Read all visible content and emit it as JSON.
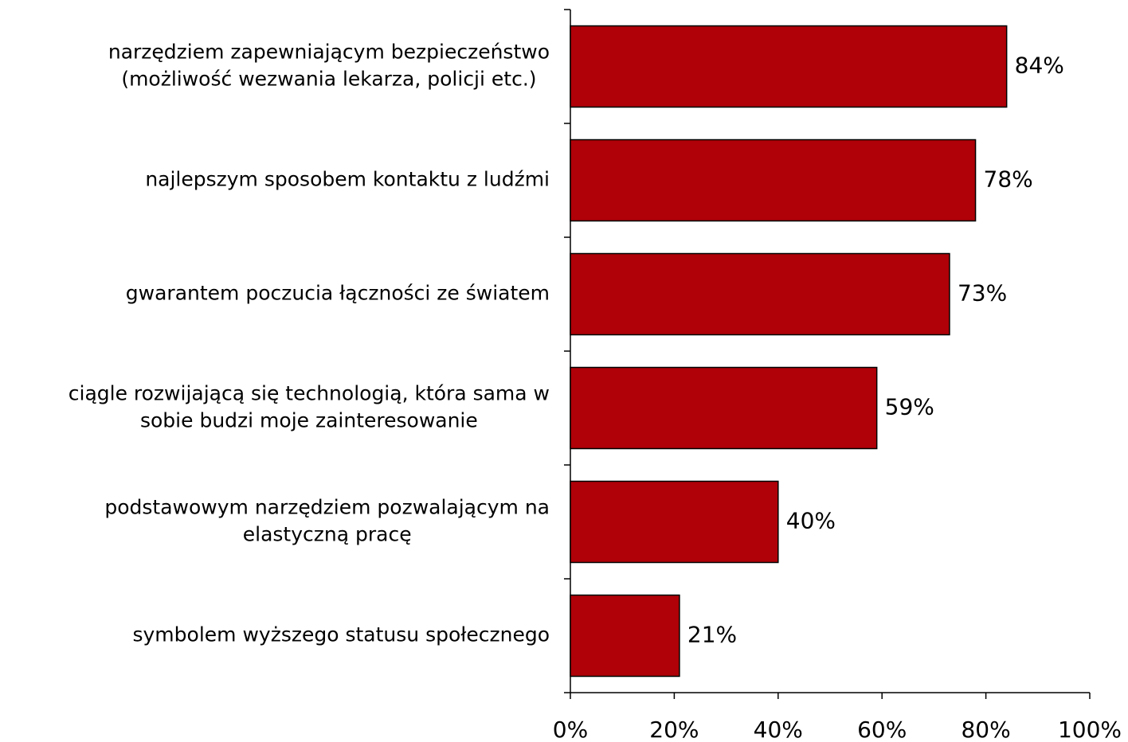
{
  "chart_data": {
    "type": "hbar",
    "categories": [
      "narzędziem zapewniającym bezpieczeństwo\n(możliwość wezwania lekarza, policji etc.)",
      "najlepszym sposobem kontaktu z ludźmi",
      "gwarantem poczucia łączności ze światem",
      "ciągle rozwijającą się technologią, która sama w\nsobie budzi moje zainteresowanie",
      "podstawowym narzędziem pozwalającym na\nelastyczną pracę",
      "symbolem wyższego statusu społecznego"
    ],
    "values": [
      84,
      78,
      73,
      59,
      40,
      21
    ],
    "value_labels": [
      "84%",
      "78%",
      "73%",
      "59%",
      "40%",
      "21%"
    ],
    "color": "#b00008",
    "xlim": [
      0,
      100
    ],
    "xticks": [
      {
        "value": 0,
        "label": "0%"
      },
      {
        "value": 20,
        "label": "20%"
      },
      {
        "value": 40,
        "label": "40%"
      },
      {
        "value": 60,
        "label": "60%"
      },
      {
        "value": 80,
        "label": "80%"
      },
      {
        "value": 100,
        "label": "100%"
      }
    ]
  }
}
